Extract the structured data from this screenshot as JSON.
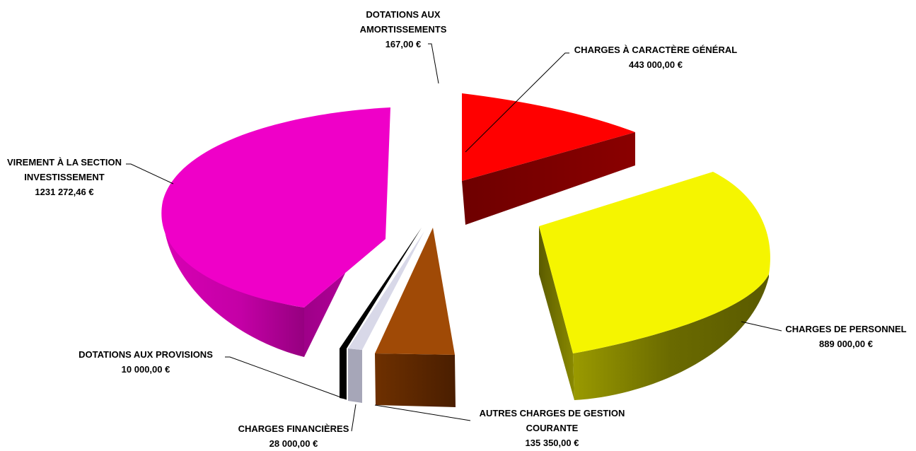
{
  "chart_data": {
    "type": "pie",
    "style": "3d-exploded",
    "title": "",
    "categories": [
      "CHARGES À CARACTÈRE GÉNÉRAL",
      "CHARGES DE PERSONNEL",
      "AUTRES CHARGES DE GESTION COURANTE",
      "CHARGES FINANCIÈRES",
      "DOTATIONS AUX PROVISIONS",
      "VIREMENT À LA SECTION INVESTISSEMENT",
      "DOTATIONS AUX AMORTISSEMENTS"
    ],
    "values": [
      443000.0,
      889000.0,
      135350.0,
      28000.0,
      10000.0,
      1231272.46,
      167.0
    ],
    "colors": [
      "#ff0000",
      "#f5f500",
      "#a04a06",
      "#d8d8e8",
      "#000000",
      "#ef00c8",
      "#ffffff"
    ],
    "legend": "none",
    "labels": [
      {
        "lines": [
          "CHARGES À CARACTÈRE GÉNÉRAL",
          "443 000,00 €"
        ]
      },
      {
        "lines": [
          "CHARGES DE PERSONNEL",
          "889 000,00 €"
        ]
      },
      {
        "lines": [
          "AUTRES CHARGES DE GESTION",
          "COURANTE",
          "135 350,00 €"
        ]
      },
      {
        "lines": [
          "CHARGES FINANCIÈRES",
          "28 000,00 €"
        ]
      },
      {
        "lines": [
          "DOTATIONS AUX PROVISIONS",
          "10 000,00 €"
        ]
      },
      {
        "lines": [
          "VIREMENT À LA SECTION",
          "INVESTISSEMENT",
          "1231 272,46 €"
        ]
      },
      {
        "lines": [
          "DOTATIONS AUX",
          "AMORTISSEMENTS",
          "167,00 €"
        ]
      }
    ]
  }
}
